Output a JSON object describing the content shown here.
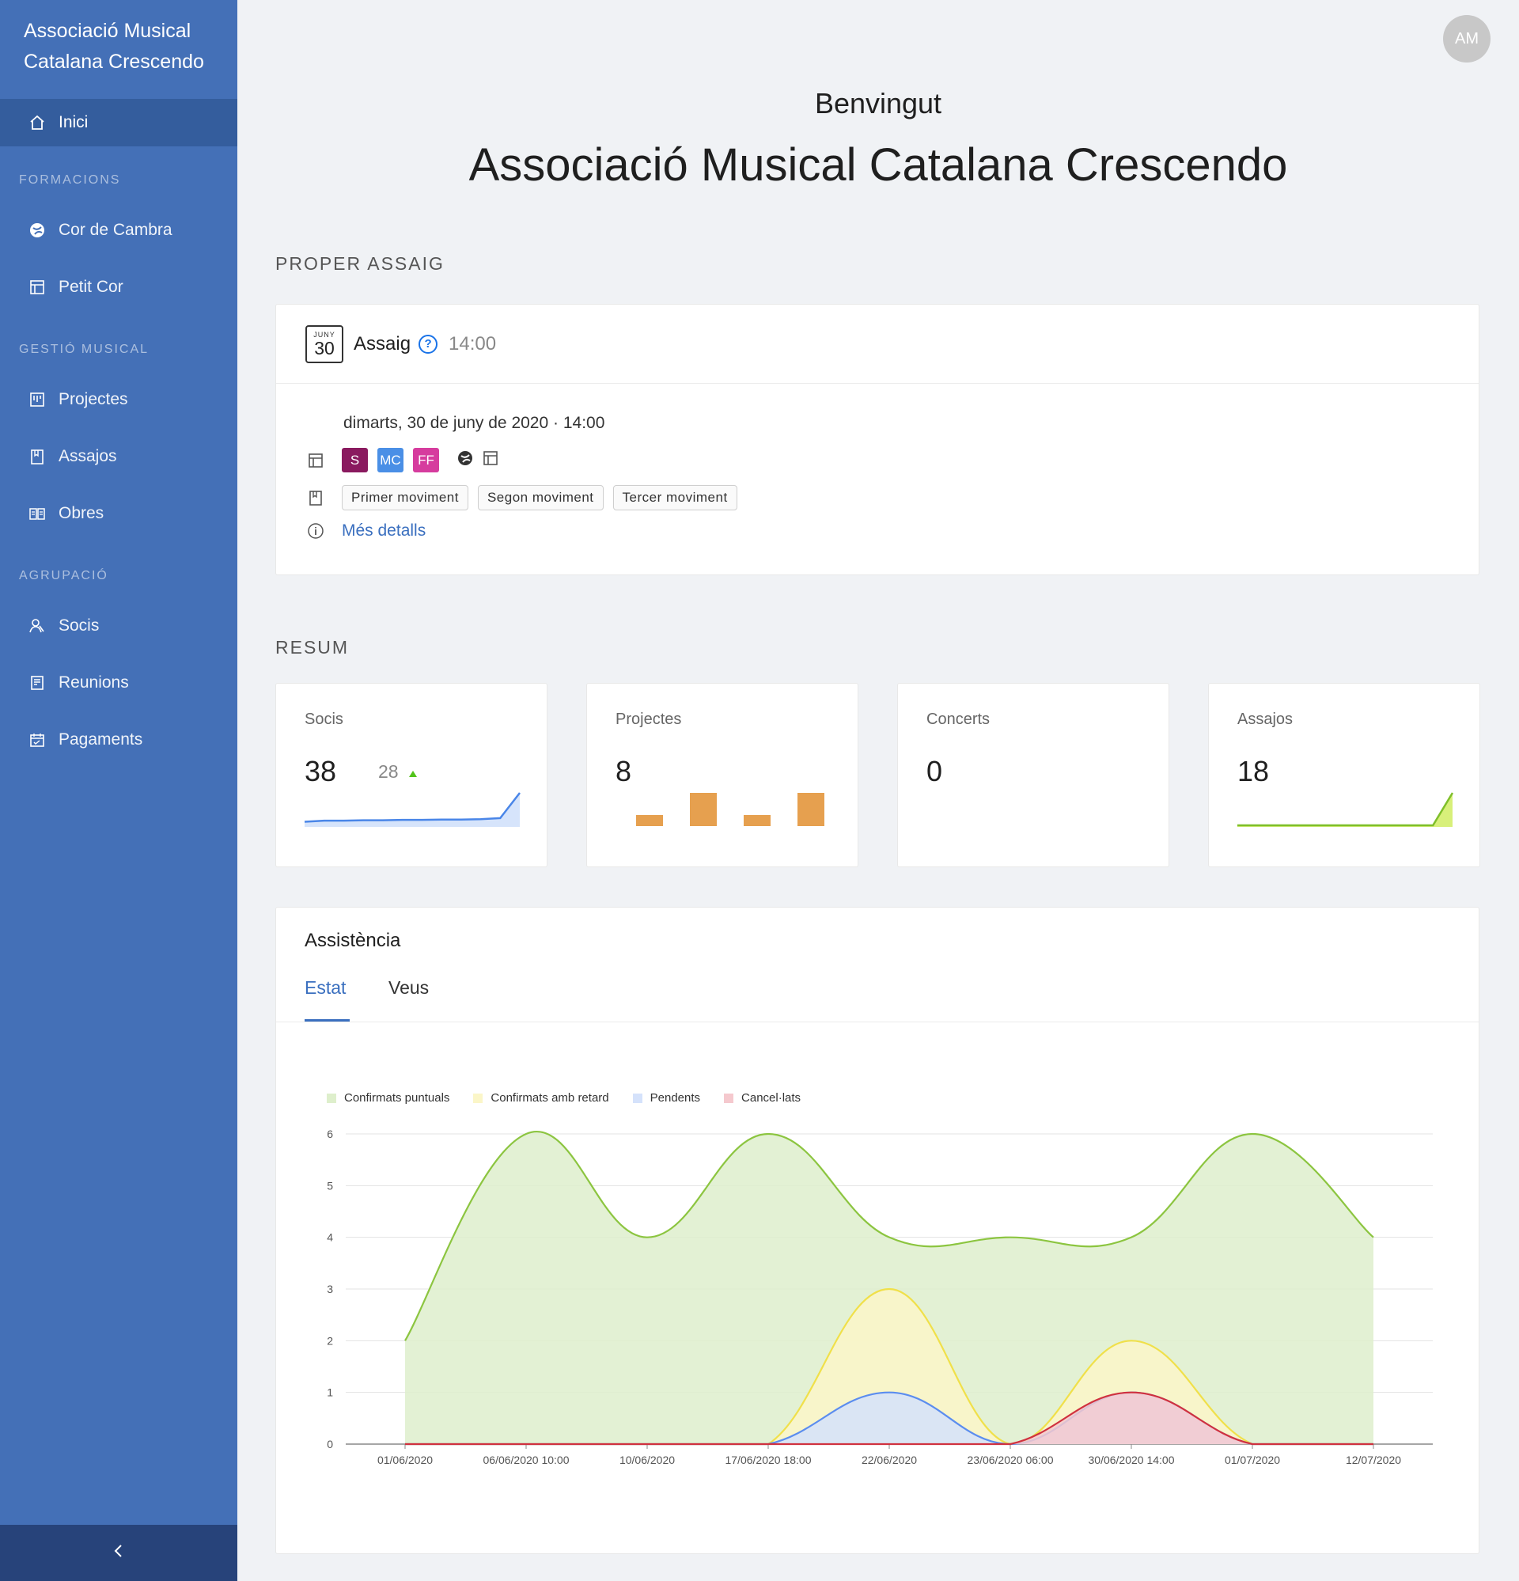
{
  "sidebar": {
    "brand": "Associació Musical Catalana Crescendo",
    "home": {
      "label": "Inici"
    },
    "sections": [
      {
        "title": "FORMACIONS",
        "items": [
          {
            "label": "Cor de Cambra",
            "icon": "choir-icon"
          },
          {
            "label": "Petit Cor",
            "icon": "layout-icon"
          }
        ]
      },
      {
        "title": "GESTIÓ MUSICAL",
        "items": [
          {
            "label": "Projectes",
            "icon": "project-icon"
          },
          {
            "label": "Assajos",
            "icon": "bookmark-icon"
          },
          {
            "label": "Obres",
            "icon": "book-icon"
          }
        ]
      },
      {
        "title": "AGRUPACIÓ",
        "items": [
          {
            "label": "Socis",
            "icon": "members-icon"
          },
          {
            "label": "Reunions",
            "icon": "meeting-icon"
          },
          {
            "label": "Pagaments",
            "icon": "payments-icon"
          }
        ]
      }
    ],
    "collapse": "<"
  },
  "header": {
    "avatar": "AM",
    "welcome": "Benvingut",
    "org": "Associació Musical Catalana Crescendo"
  },
  "next_rehearsal": {
    "section": "PROPER ASSAIG",
    "cal_month": "JUNY",
    "cal_day": "30",
    "title": "Assaig",
    "time": "14:00",
    "datetime": "dimarts, 30 de juny de 2020 · 14:00",
    "badges": [
      {
        "text": "S",
        "color": "#8a1a5f"
      },
      {
        "text": "MC",
        "color": "#4a8fe6"
      },
      {
        "text": "FF",
        "color": "#d63c9e"
      }
    ],
    "tags": [
      "Primer moviment",
      "Segon moviment",
      "Tercer moviment"
    ],
    "details": "Més detalls"
  },
  "summary": {
    "section": "RESUM",
    "socis": {
      "label": "Socis",
      "value": "38",
      "sub": "28",
      "trend": [
        1,
        1.3,
        1.3,
        1.4,
        1.4,
        1.5,
        1.5,
        1.6,
        1.6,
        1.7,
        2,
        9
      ]
    },
    "projectes": {
      "label": "Projectes",
      "value": "8",
      "bars": [
        1,
        3,
        1,
        3
      ]
    },
    "concerts": {
      "label": "Concerts",
      "value": "0"
    },
    "assajos": {
      "label": "Assajos",
      "value": "18",
      "trend": [
        0,
        0,
        0,
        0,
        0,
        0,
        0,
        0,
        0,
        0,
        0,
        8
      ]
    }
  },
  "attendance": {
    "title": "Assistència",
    "tabs": [
      "Estat",
      "Veus"
    ],
    "active_tab": "Estat"
  },
  "chart_data": {
    "type": "area",
    "categories": [
      "01/06/2020",
      "06/06/2020 10:00",
      "10/06/2020",
      "17/06/2020 18:00",
      "22/06/2020",
      "23/06/2020 06:00",
      "30/06/2020 14:00",
      "01/07/2020",
      "12/07/2020"
    ],
    "series": [
      {
        "name": "Confirmats puntuals",
        "color": "#8cc540",
        "fill": "#deefcc",
        "values": [
          2,
          6,
          4,
          6,
          4,
          4,
          4,
          6,
          4
        ]
      },
      {
        "name": "Confirmats amb retard",
        "color": "#f0e04a",
        "fill": "#fbf6c8",
        "values": [
          0,
          0,
          0,
          0,
          3,
          0,
          2,
          0,
          0
        ]
      },
      {
        "name": "Pendents",
        "color": "#5b8def",
        "fill": "#d5e2fb",
        "values": [
          0,
          0,
          0,
          0,
          1,
          0,
          1,
          0,
          0
        ]
      },
      {
        "name": "Cancel·lats",
        "color": "#d0313f",
        "fill": "#f5c9ce",
        "values": [
          0,
          0,
          0,
          0,
          0,
          0,
          1,
          0,
          0
        ]
      }
    ],
    "ylim": [
      0,
      6
    ],
    "yticks": [
      "0",
      "1",
      "2",
      "3",
      "4",
      "5",
      "6"
    ],
    "grid": true,
    "legend": "top-left"
  }
}
